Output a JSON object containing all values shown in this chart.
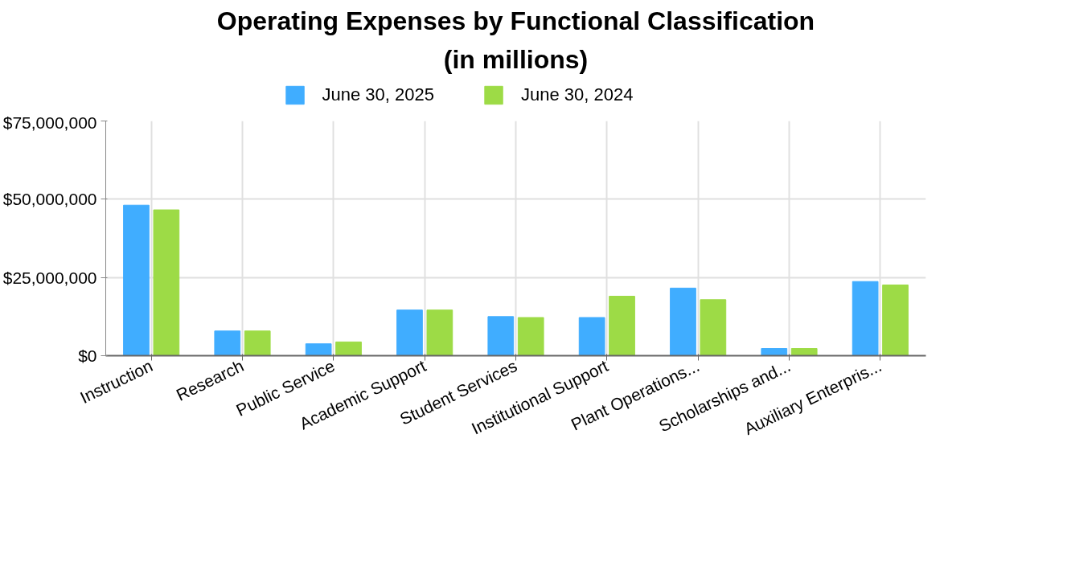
{
  "chart_data": {
    "type": "bar",
    "title": "Operating Expenses by Functional Classification",
    "subtitle": "(in millions)",
    "categories": [
      "Instruction",
      "Research",
      "Public Service",
      "Academic Support",
      "Student Services",
      "Institutional Support",
      "Plant Operations...",
      "Scholarships and...",
      "Auxiliary Enterpris..."
    ],
    "series": [
      {
        "name": "June 30, 2025",
        "color": "#40adff",
        "values": [
          48100000,
          7900000,
          3800000,
          14600000,
          12500000,
          12200000,
          21600000,
          2300000,
          23700000
        ]
      },
      {
        "name": "June 30, 2024",
        "color": "#9ddb46",
        "values": [
          46600000,
          7900000,
          4400000,
          14600000,
          12200000,
          19000000,
          17900000,
          2300000,
          22600000
        ]
      }
    ],
    "ylim": [
      0,
      75000000
    ],
    "yticks": [
      {
        "value": 0,
        "label": "$0"
      },
      {
        "value": 25000000,
        "label": "$25,000,000"
      },
      {
        "value": 50000000,
        "label": "$50,000,000"
      },
      {
        "value": 75000000,
        "label": "$75,000,000"
      }
    ],
    "grid": true,
    "legend": "top"
  }
}
